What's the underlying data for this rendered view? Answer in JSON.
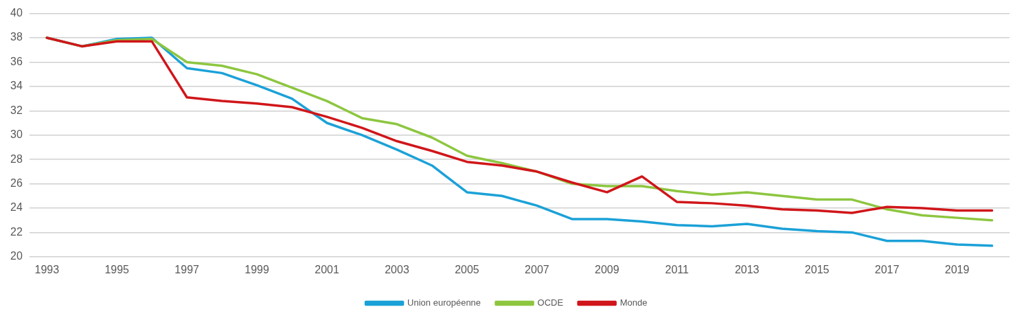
{
  "chart_data": {
    "type": "line",
    "categories": [
      "1993",
      null,
      "1995",
      null,
      "1997",
      null,
      "1999",
      null,
      "2001",
      null,
      "2003",
      null,
      "2005",
      null,
      "2007",
      null,
      "2009",
      null,
      "2011",
      null,
      "2013",
      null,
      "2015",
      null,
      "2017",
      null,
      "2019",
      null
    ],
    "series": [
      {
        "name": "Union européenne",
        "color": "#1ba1d8",
        "values": [
          38,
          37.3,
          37.9,
          38.0,
          35.5,
          35.1,
          34.1,
          33.0,
          31.0,
          30.0,
          28.8,
          27.5,
          25.3,
          25.0,
          24.2,
          23.1,
          23.1,
          22.9,
          22.6,
          22.5,
          22.7,
          22.3,
          22.1,
          22.0,
          21.3,
          21.3,
          21.0,
          20.9
        ]
      },
      {
        "name": "OCDE",
        "color": "#8dc63f",
        "values": [
          38,
          37.3,
          37.8,
          37.9,
          36.0,
          35.7,
          35.0,
          33.9,
          32.8,
          31.4,
          30.9,
          29.8,
          28.3,
          27.7,
          27.0,
          26.0,
          25.8,
          25.8,
          25.4,
          25.1,
          25.3,
          25.0,
          24.7,
          24.7,
          23.9,
          23.4,
          23.2,
          23.0
        ]
      },
      {
        "name": "Monde",
        "color": "#d0161a",
        "values": [
          38,
          37.3,
          37.7,
          37.7,
          33.1,
          32.8,
          32.6,
          32.3,
          31.5,
          30.6,
          29.5,
          28.7,
          27.8,
          27.5,
          27.0,
          26.1,
          25.3,
          26.6,
          24.5,
          24.4,
          24.2,
          23.9,
          23.8,
          23.6,
          24.1,
          24.0,
          23.8,
          23.8
        ]
      }
    ],
    "ylim": [
      20,
      40
    ],
    "yticks": [
      20,
      22,
      24,
      26,
      28,
      30,
      32,
      34,
      36,
      38,
      40
    ],
    "grid": "y",
    "legend": "bottom",
    "marker": "none",
    "line_style": "solid"
  }
}
